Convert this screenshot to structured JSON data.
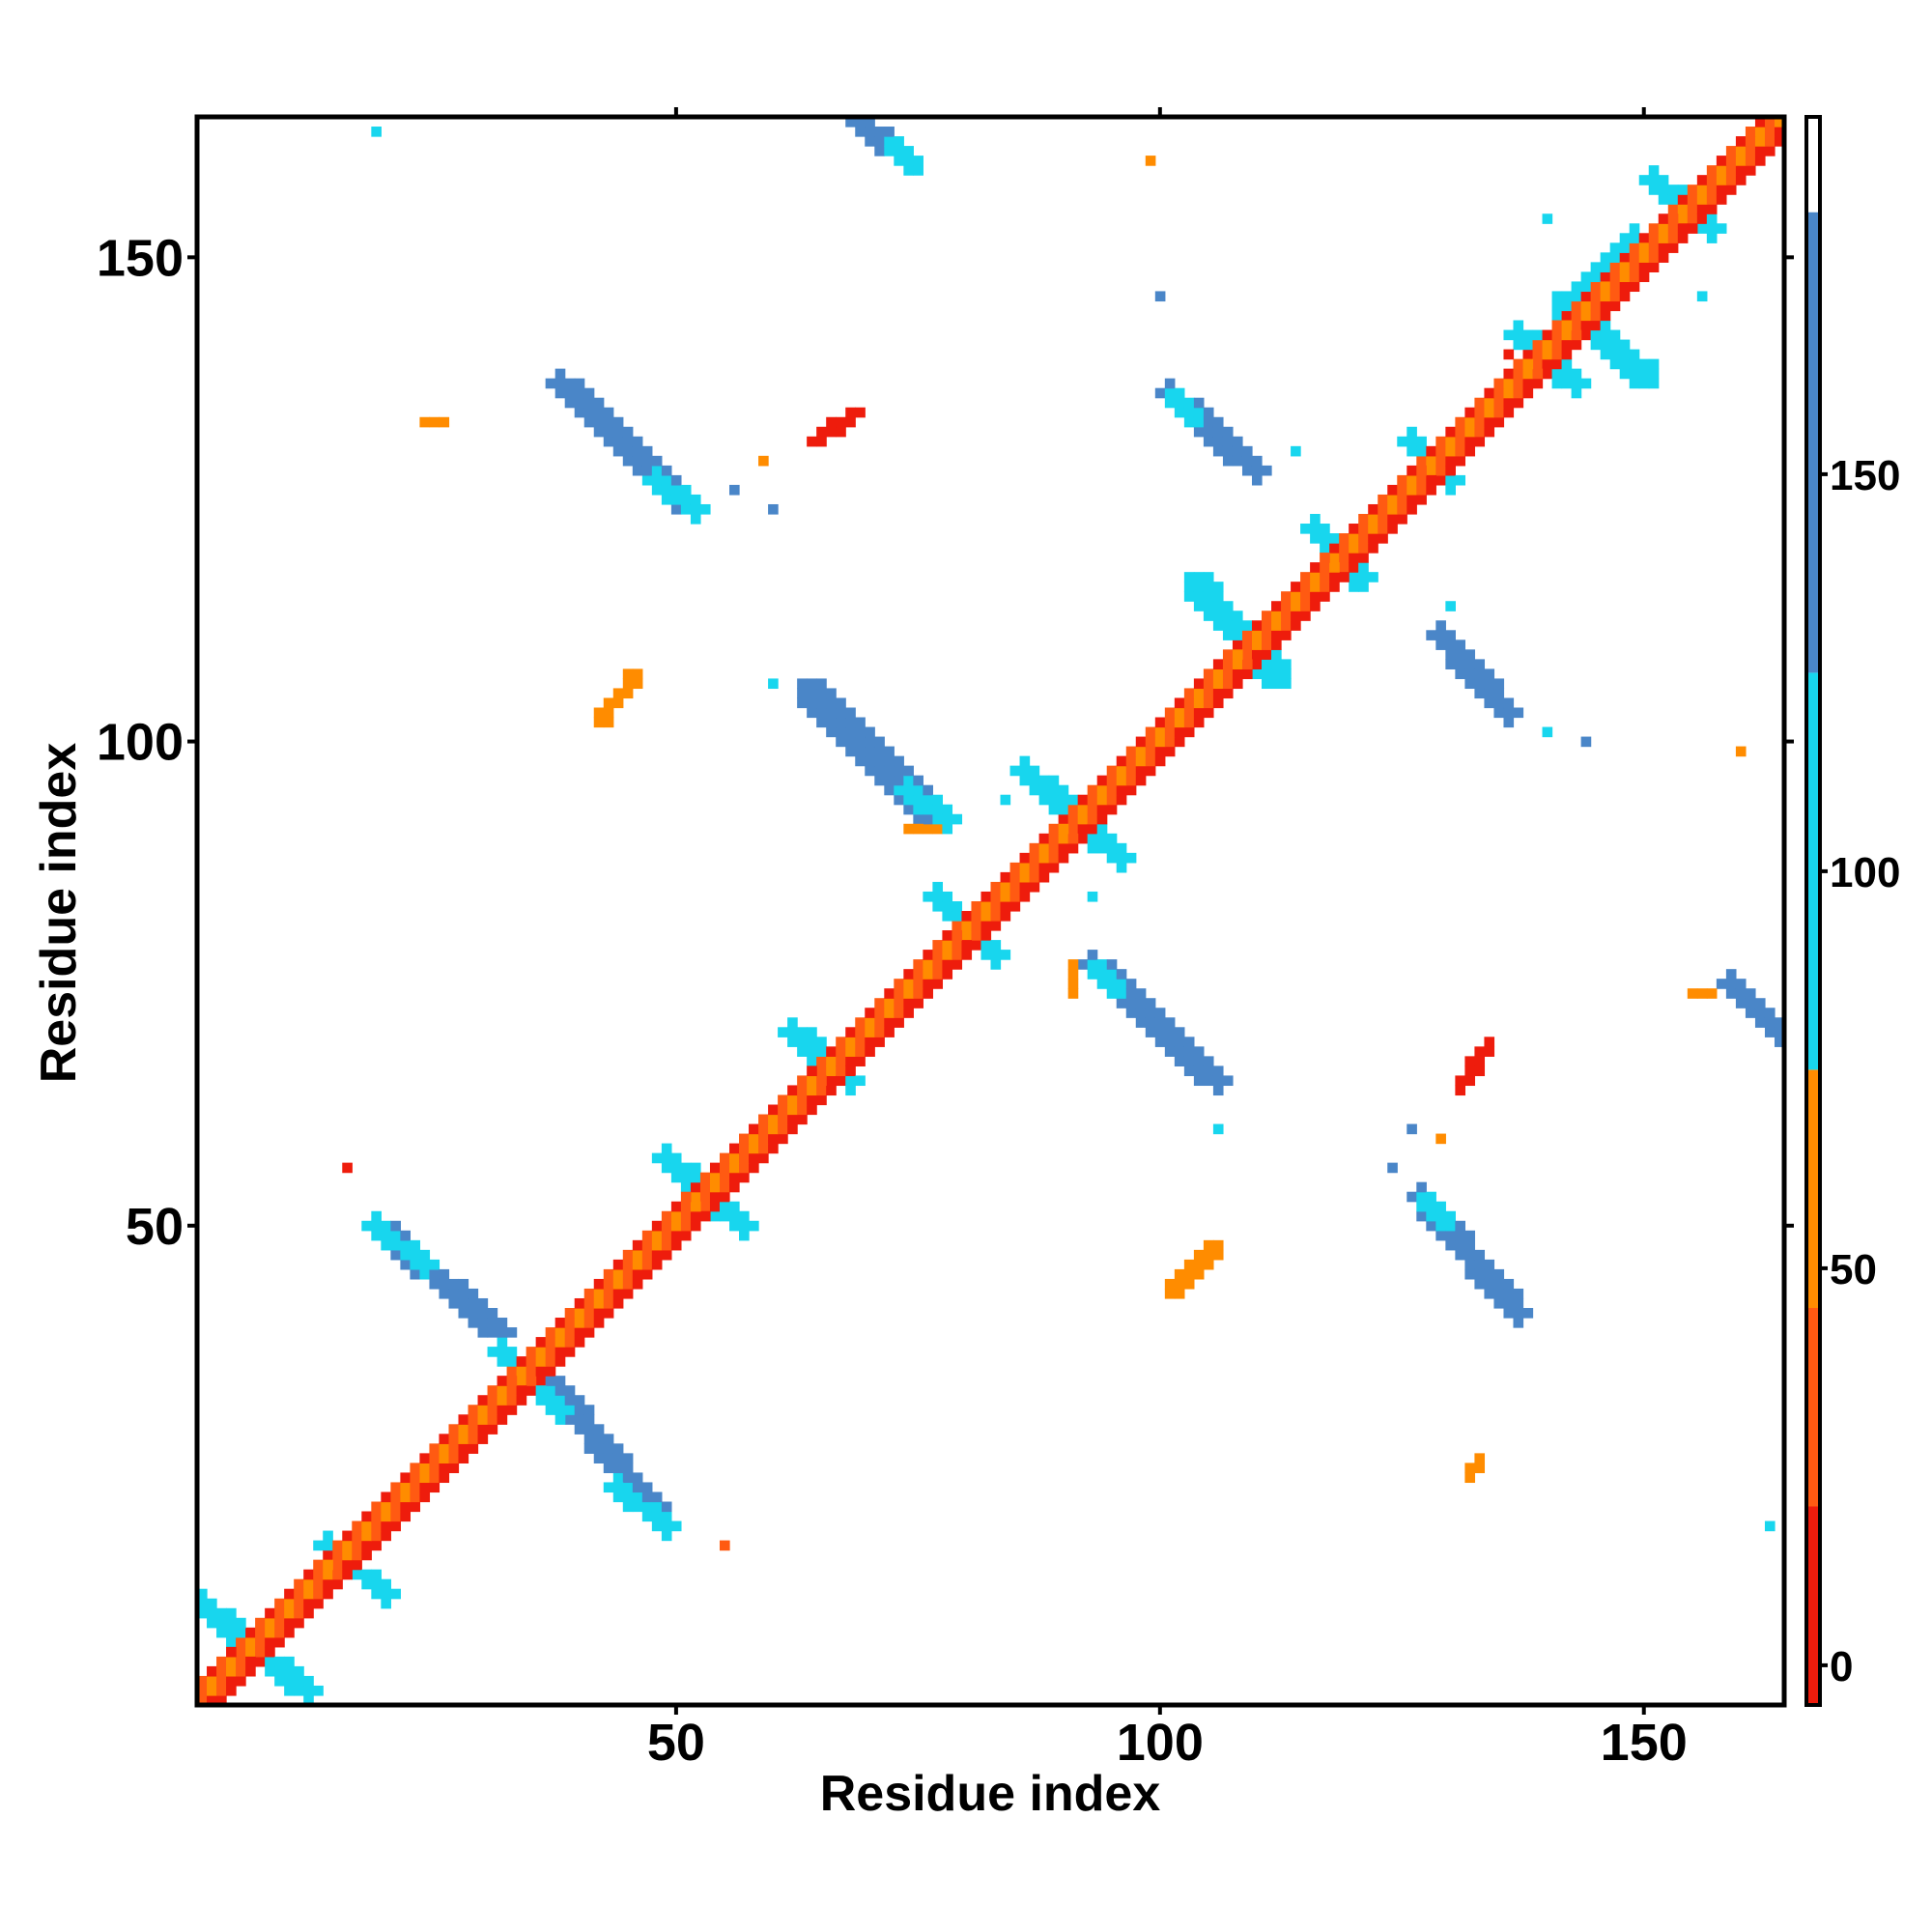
{
  "chart_data": {
    "type": "heatmap",
    "title": "",
    "xlabel": "Residue index",
    "ylabel": "Residue index",
    "xlim": [
      0.5,
      164.5
    ],
    "ylim": [
      0.5,
      164.5
    ],
    "x_ticks": [
      50,
      100,
      150
    ],
    "y_ticks": [
      50,
      100,
      150
    ],
    "colorbar": {
      "range": [
        -5,
        195
      ],
      "ticks": [
        0,
        50,
        100,
        150
      ],
      "bands": [
        {
          "from": -5,
          "to": 20,
          "color": "#ee1c0c"
        },
        {
          "from": 20,
          "to": 45,
          "color": "#ff5a12"
        },
        {
          "from": 45,
          "to": 75,
          "color": "#ff8c00"
        },
        {
          "from": 75,
          "to": 125,
          "color": "#18d6ee"
        },
        {
          "from": 125,
          "to": 183,
          "color": "#4a86c8"
        },
        {
          "from": 183,
          "to": 195,
          "color": "#ffffff"
        }
      ]
    },
    "regions": [
      {
        "kind": "diagonal_band",
        "from": 1,
        "to": 164,
        "colors": [
          "#ee1c0c",
          "#ff5a12",
          "#ff8c00",
          "#ff5a12",
          "#ee1c0c"
        ]
      },
      {
        "kind": "segment",
        "x1": 4,
        "y1": 8,
        "x2": 12,
        "y2": 2,
        "width": 2.4,
        "color": "#18d6ee"
      },
      {
        "kind": "segment",
        "x1": 1,
        "y1": 11,
        "x2": 6,
        "y2": 7,
        "width": 2.2,
        "color": "#18d6ee"
      },
      {
        "kind": "segment",
        "x1": 19,
        "y1": 50,
        "x2": 32,
        "y2": 39,
        "width": 2.6,
        "color": "#4a86c8"
      },
      {
        "kind": "segment",
        "x1": 19,
        "y1": 50,
        "x2": 24,
        "y2": 46,
        "width": 2.0,
        "color": "#18d6ee"
      },
      {
        "kind": "segment",
        "x1": 37,
        "y1": 34,
        "x2": 49,
        "y2": 19,
        "width": 2.6,
        "color": "#4a86c8"
      },
      {
        "kind": "segment",
        "x1": 44,
        "y1": 23,
        "x2": 49,
        "y2": 19,
        "width": 2.0,
        "color": "#18d6ee"
      },
      {
        "kind": "segment",
        "x1": 38,
        "y1": 137,
        "x2": 52,
        "y2": 124,
        "width": 2.8,
        "color": "#4a86c8"
      },
      {
        "kind": "segment",
        "x1": 48,
        "y1": 127,
        "x2": 52,
        "y2": 124,
        "width": 2.0,
        "color": "#18d6ee"
      },
      {
        "kind": "segment",
        "x1": 64,
        "y1": 105,
        "x2": 77,
        "y2": 92,
        "width": 3.0,
        "color": "#4a86c8"
      },
      {
        "kind": "segment",
        "x1": 74,
        "y1": 95,
        "x2": 78,
        "y2": 92,
        "width": 2.0,
        "color": "#18d6ee"
      },
      {
        "kind": "segment",
        "x1": 69,
        "y1": 164,
        "x2": 74,
        "y2": 160,
        "width": 2.2,
        "color": "#4a86c8"
      },
      {
        "kind": "segment",
        "x1": 72,
        "y1": 162,
        "x2": 75,
        "y2": 159,
        "width": 1.6,
        "color": "#18d6ee"
      },
      {
        "kind": "segment",
        "x1": 93,
        "y1": 77,
        "x2": 106,
        "y2": 65,
        "width": 2.8,
        "color": "#4a86c8"
      },
      {
        "kind": "segment",
        "x1": 93,
        "y1": 77,
        "x2": 96,
        "y2": 74,
        "width": 1.8,
        "color": "#18d6ee"
      },
      {
        "kind": "segment",
        "x1": 101,
        "y1": 136,
        "x2": 110,
        "y2": 128,
        "width": 2.6,
        "color": "#4a86c8"
      },
      {
        "kind": "segment",
        "x1": 101,
        "y1": 136,
        "x2": 104,
        "y2": 133,
        "width": 1.8,
        "color": "#18d6ee"
      },
      {
        "kind": "segment",
        "x1": 129,
        "y1": 111,
        "x2": 136,
        "y2": 103,
        "width": 2.6,
        "color": "#4a86c8"
      },
      {
        "kind": "segment",
        "x1": 127,
        "y1": 53,
        "x2": 137,
        "y2": 41,
        "width": 2.8,
        "color": "#4a86c8"
      },
      {
        "kind": "segment",
        "x1": 127,
        "y1": 53,
        "x2": 130,
        "y2": 50,
        "width": 1.8,
        "color": "#18d6ee"
      },
      {
        "kind": "segment",
        "x1": 159,
        "y1": 75,
        "x2": 164,
        "y2": 70,
        "width": 2.4,
        "color": "#4a86c8"
      },
      {
        "kind": "segment",
        "x1": 142,
        "y1": 145,
        "x2": 150,
        "y2": 138,
        "width": 3.0,
        "color": "#18d6ee"
      },
      {
        "kind": "segment",
        "x1": 142,
        "y1": 145,
        "x2": 149,
        "y2": 152,
        "width": 2.6,
        "color": "#18d6ee"
      },
      {
        "kind": "segment",
        "x1": 14,
        "y1": 17,
        "x2": 20,
        "y2": 12,
        "width": 2.0,
        "color": "#18d6ee"
      },
      {
        "kind": "segment",
        "x1": 32,
        "y1": 37,
        "x2": 38,
        "y2": 31,
        "width": 2.4,
        "color": "#18d6ee"
      },
      {
        "kind": "segment",
        "x1": 49,
        "y1": 57,
        "x2": 57,
        "y2": 50,
        "width": 2.6,
        "color": "#18d6ee"
      },
      {
        "kind": "segment",
        "x1": 62,
        "y1": 70,
        "x2": 68,
        "y2": 65,
        "width": 2.6,
        "color": "#18d6ee"
      },
      {
        "kind": "segment",
        "x1": 77,
        "y1": 84,
        "x2": 83,
        "y2": 78,
        "width": 2.0,
        "color": "#18d6ee"
      },
      {
        "kind": "segment",
        "x1": 86,
        "y1": 97,
        "x2": 96,
        "y2": 88,
        "width": 2.6,
        "color": "#18d6ee"
      },
      {
        "kind": "segment",
        "x1": 104,
        "y1": 116,
        "x2": 112,
        "y2": 107,
        "width": 3.0,
        "color": "#18d6ee"
      },
      {
        "kind": "segment",
        "x1": 116,
        "y1": 122,
        "x2": 121,
        "y2": 117,
        "width": 2.4,
        "color": "#18d6ee"
      },
      {
        "kind": "segment",
        "x1": 126,
        "y1": 131,
        "x2": 130,
        "y2": 127,
        "width": 2.0,
        "color": "#18d6ee"
      },
      {
        "kind": "segment",
        "x1": 137,
        "y1": 142,
        "x2": 143,
        "y2": 137,
        "width": 2.6,
        "color": "#18d6ee"
      },
      {
        "kind": "segment",
        "x1": 151,
        "y1": 158,
        "x2": 157,
        "y2": 153,
        "width": 2.4,
        "color": "#18d6ee"
      },
      {
        "kind": "segment",
        "x1": 42,
        "y1": 102,
        "x2": 46,
        "y2": 107,
        "width": 1.6,
        "color": "#ff8c00"
      },
      {
        "kind": "segment",
        "x1": 101,
        "y1": 43,
        "x2": 106,
        "y2": 48,
        "width": 1.6,
        "color": "#ff8c00"
      },
      {
        "kind": "segment",
        "x1": 64,
        "y1": 131,
        "x2": 69,
        "y2": 134,
        "width": 1.4,
        "color": "#ee1c0c"
      },
      {
        "kind": "segment",
        "x1": 131,
        "y1": 64,
        "x2": 134,
        "y2": 69,
        "width": 1.4,
        "color": "#ee1c0c"
      },
      {
        "kind": "segment",
        "x1": 132,
        "y1": 24,
        "x2": 133,
        "y2": 26,
        "width": 1.4,
        "color": "#ff8c00"
      },
      {
        "kind": "segment",
        "x1": 74,
        "y1": 91,
        "x2": 77,
        "y2": 91,
        "width": 1.2,
        "color": "#ff8c00"
      },
      {
        "kind": "segment",
        "x1": 91,
        "y1": 74,
        "x2": 91,
        "y2": 77,
        "width": 1.2,
        "color": "#ff8c00"
      },
      {
        "kind": "segment",
        "x1": 24,
        "y1": 133,
        "x2": 26,
        "y2": 133,
        "width": 1.2,
        "color": "#ff8c00"
      },
      {
        "kind": "segment",
        "x1": 155,
        "y1": 74,
        "x2": 157,
        "y2": 74,
        "width": 1.2,
        "color": "#ff8c00"
      }
    ],
    "scattered_cells": [
      {
        "x": 19,
        "y": 163,
        "color": "#18d6ee"
      },
      {
        "x": 99,
        "y": 160,
        "color": "#ff8c00"
      },
      {
        "x": 140,
        "y": 154,
        "color": "#18d6ee"
      },
      {
        "x": 156,
        "y": 146,
        "color": "#18d6ee"
      },
      {
        "x": 100,
        "y": 146,
        "color": "#4a86c8"
      },
      {
        "x": 114,
        "y": 130,
        "color": "#18d6ee"
      },
      {
        "x": 56,
        "y": 126,
        "color": "#4a86c8"
      },
      {
        "x": 60,
        "y": 124,
        "color": "#4a86c8"
      },
      {
        "x": 59,
        "y": 129,
        "color": "#ff8c00"
      },
      {
        "x": 16,
        "y": 56,
        "color": "#ee1c0c"
      },
      {
        "x": 55,
        "y": 17,
        "color": "#ff5a12"
      },
      {
        "x": 163,
        "y": 19,
        "color": "#18d6ee"
      },
      {
        "x": 160,
        "y": 99,
        "color": "#ff8c00"
      },
      {
        "x": 144,
        "y": 100,
        "color": "#4a86c8"
      },
      {
        "x": 140,
        "y": 101,
        "color": "#18d6ee"
      },
      {
        "x": 130,
        "y": 114,
        "color": "#18d6ee"
      },
      {
        "x": 124,
        "y": 56,
        "color": "#4a86c8"
      },
      {
        "x": 126,
        "y": 60,
        "color": "#4a86c8"
      },
      {
        "x": 129,
        "y": 59,
        "color": "#ff8c00"
      },
      {
        "x": 106,
        "y": 60,
        "color": "#18d6ee"
      },
      {
        "x": 93,
        "y": 84,
        "color": "#18d6ee"
      },
      {
        "x": 84,
        "y": 94,
        "color": "#18d6ee"
      },
      {
        "x": 60,
        "y": 106,
        "color": "#18d6ee"
      },
      {
        "x": 120,
        "y": 116,
        "color": "#18d6ee"
      },
      {
        "x": 136,
        "y": 140,
        "color": "#ee1c0c"
      }
    ]
  }
}
